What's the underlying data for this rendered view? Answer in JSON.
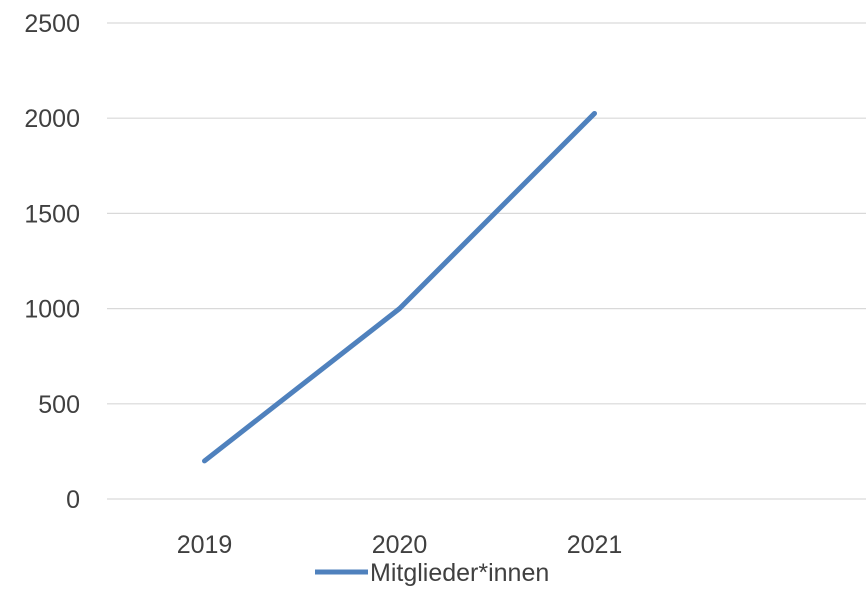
{
  "chart_data": {
    "type": "line",
    "title": "",
    "xlabel": "",
    "ylabel": "",
    "categories": [
      "2019",
      "2020",
      "2021",
      ""
    ],
    "series": [
      {
        "name": "Mitglieder*innen",
        "values": [
          200,
          1000,
          2025,
          null
        ],
        "color": "#4f81bd"
      }
    ],
    "ylim": [
      0,
      2500
    ],
    "yticks": [
      0,
      500,
      1000,
      1500,
      2000,
      2500
    ],
    "grid": true,
    "legend": "bottom",
    "gridline_color": "#d9d9d9",
    "tick_label_color": "#404040"
  }
}
